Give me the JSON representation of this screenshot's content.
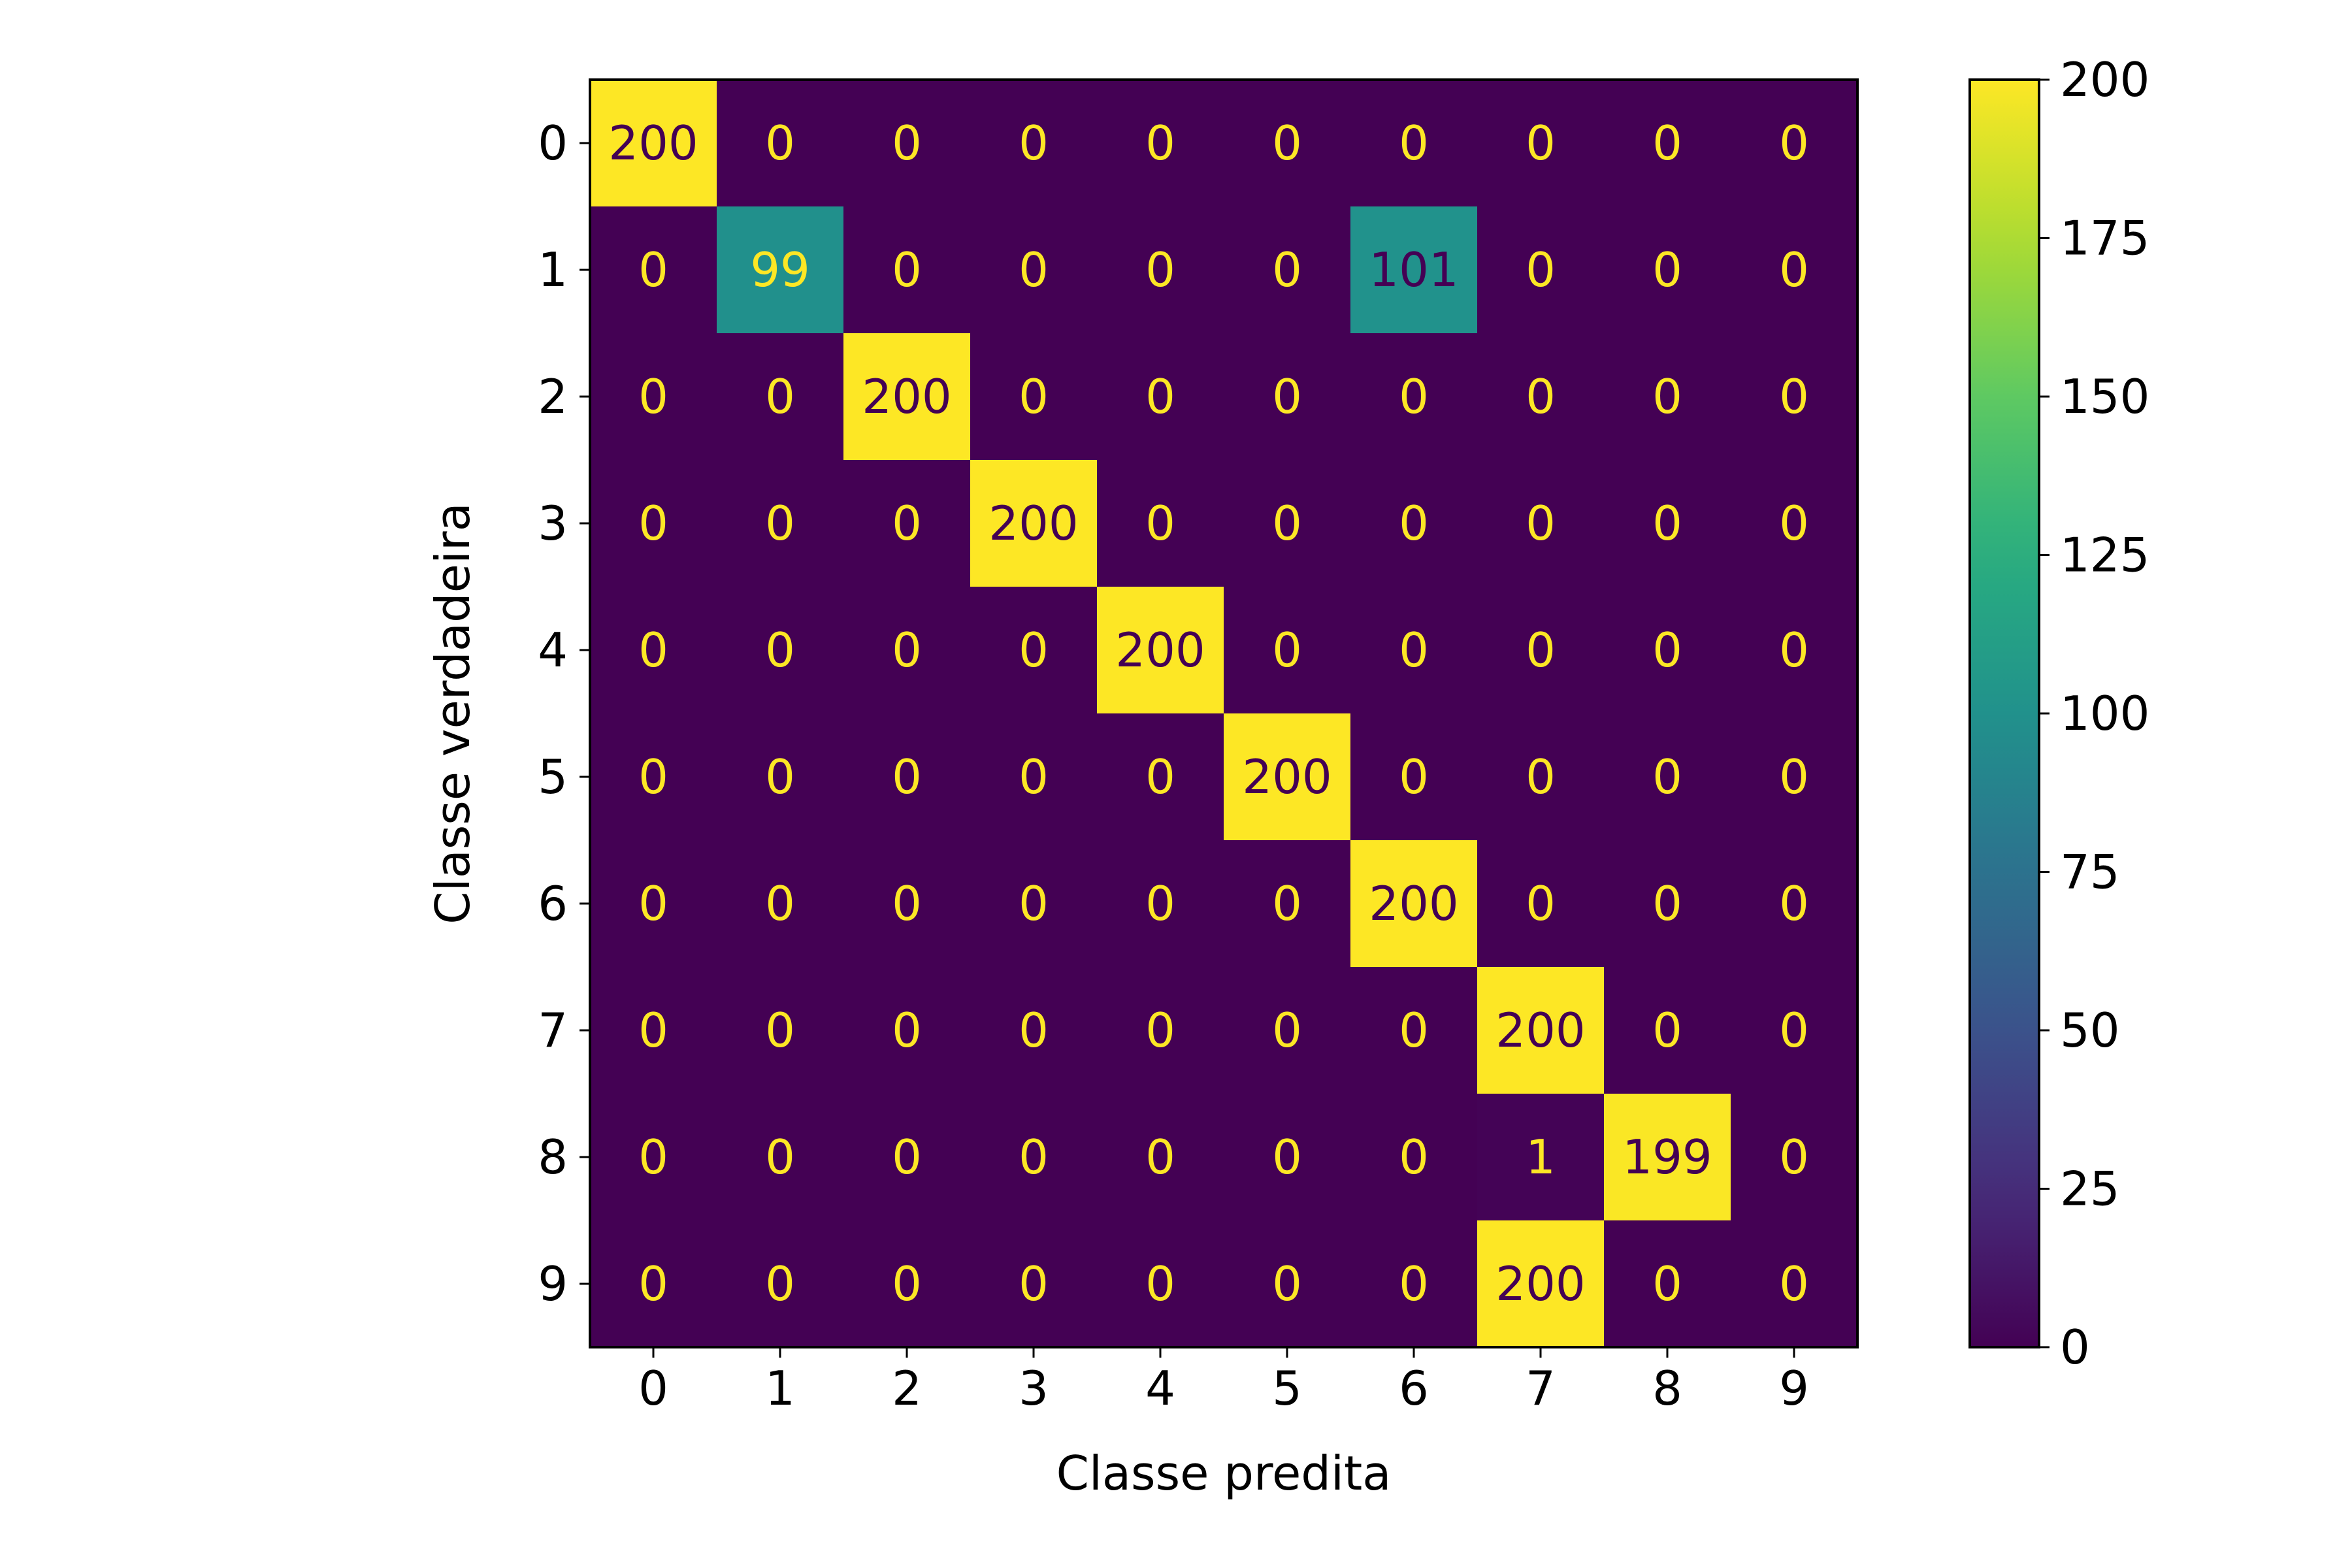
{
  "chart_data": {
    "type": "heatmap",
    "title": "",
    "xlabel": "Classe predita",
    "ylabel": "Classe verdadeira",
    "x_categories": [
      "0",
      "1",
      "2",
      "3",
      "4",
      "5",
      "6",
      "7",
      "8",
      "9"
    ],
    "y_categories": [
      "0",
      "1",
      "2",
      "3",
      "4",
      "5",
      "6",
      "7",
      "8",
      "9"
    ],
    "values": [
      [
        200,
        0,
        0,
        0,
        0,
        0,
        0,
        0,
        0,
        0
      ],
      [
        0,
        99,
        0,
        0,
        0,
        0,
        101,
        0,
        0,
        0
      ],
      [
        0,
        0,
        200,
        0,
        0,
        0,
        0,
        0,
        0,
        0
      ],
      [
        0,
        0,
        0,
        200,
        0,
        0,
        0,
        0,
        0,
        0
      ],
      [
        0,
        0,
        0,
        0,
        200,
        0,
        0,
        0,
        0,
        0
      ],
      [
        0,
        0,
        0,
        0,
        0,
        200,
        0,
        0,
        0,
        0
      ],
      [
        0,
        0,
        0,
        0,
        0,
        0,
        200,
        0,
        0,
        0
      ],
      [
        0,
        0,
        0,
        0,
        0,
        0,
        0,
        200,
        0,
        0
      ],
      [
        0,
        0,
        0,
        0,
        0,
        0,
        0,
        1,
        199,
        0
      ],
      [
        0,
        0,
        0,
        0,
        0,
        0,
        0,
        200,
        0,
        0
      ]
    ],
    "colormap": "viridis",
    "vmin": 0,
    "vmax": 200,
    "colorbar": {
      "ticks": [
        0,
        25,
        50,
        75,
        100,
        125,
        150,
        175,
        200
      ],
      "tick_labels": [
        "0",
        "25",
        "50",
        "75",
        "100",
        "125",
        "150",
        "175",
        "200"
      ]
    },
    "text_colors": {
      "low": "#fde725",
      "high": "#440154"
    },
    "grid": false
  }
}
